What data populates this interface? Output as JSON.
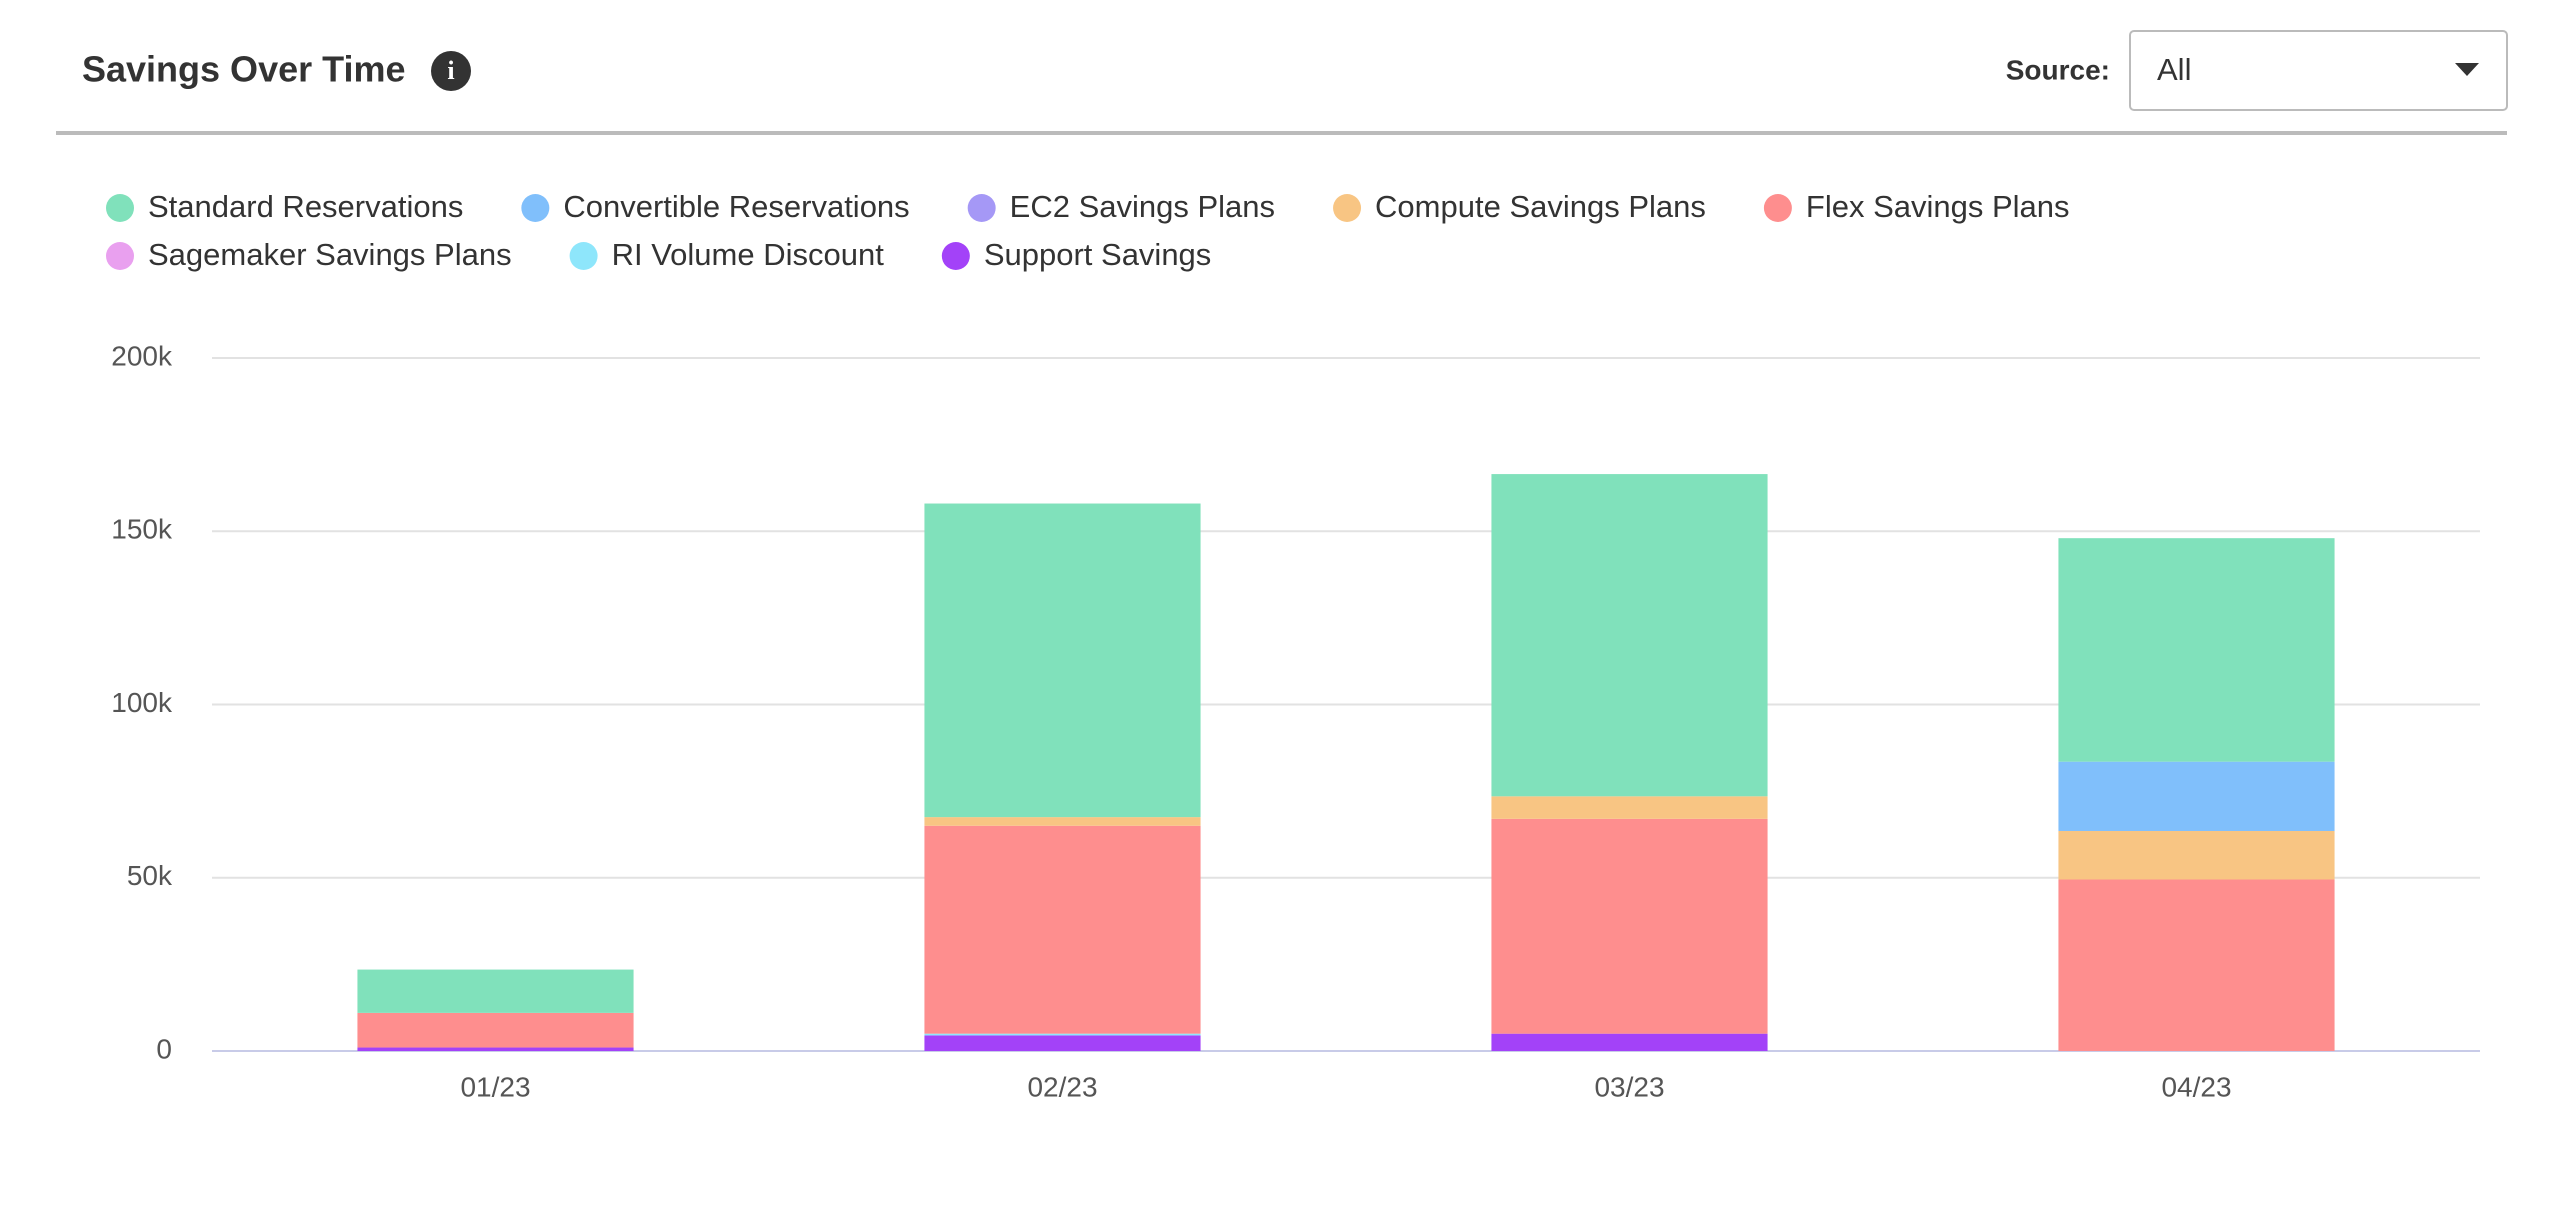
{
  "header": {
    "title": "Savings Over Time",
    "source_label": "Source:",
    "source_value": "All"
  },
  "chart_data": {
    "type": "bar",
    "stacked": true,
    "categories": [
      "01/23",
      "02/23",
      "03/23",
      "04/23"
    ],
    "ylim": [
      0,
      200000
    ],
    "yticks": [
      {
        "value": 0,
        "label": "0"
      },
      {
        "value": 50000,
        "label": "50k"
      },
      {
        "value": 100000,
        "label": "100k"
      },
      {
        "value": 150000,
        "label": "150k"
      },
      {
        "value": 200000,
        "label": "200k"
      }
    ],
    "grid": true,
    "series": [
      {
        "name": "Standard Reservations",
        "color": "#80e1bb",
        "values": [
          12500,
          90500,
          93000,
          64500
        ]
      },
      {
        "name": "Convertible Reservations",
        "color": "#80bffb",
        "values": [
          0,
          0,
          0,
          20000
        ]
      },
      {
        "name": "EC2 Savings Plans",
        "color": "#a598f6",
        "values": [
          0,
          0,
          0,
          0
        ]
      },
      {
        "name": "Compute Savings Plans",
        "color": "#f8c583",
        "values": [
          0,
          2500,
          6500,
          14000
        ]
      },
      {
        "name": "Flex Savings Plans",
        "color": "#fe8e8e",
        "values": [
          10000,
          60000,
          62000,
          49500
        ]
      },
      {
        "name": "Sagemaker Savings Plans",
        "color": "#e9a0ef",
        "values": [
          0,
          0,
          0,
          0
        ]
      },
      {
        "name": "RI Volume Discount",
        "color": "#8ee6fb",
        "values": [
          0,
          500,
          0,
          0
        ]
      },
      {
        "name": "Support Savings",
        "color": "#a342f8",
        "values": [
          1000,
          4500,
          5000,
          0
        ]
      }
    ]
  }
}
